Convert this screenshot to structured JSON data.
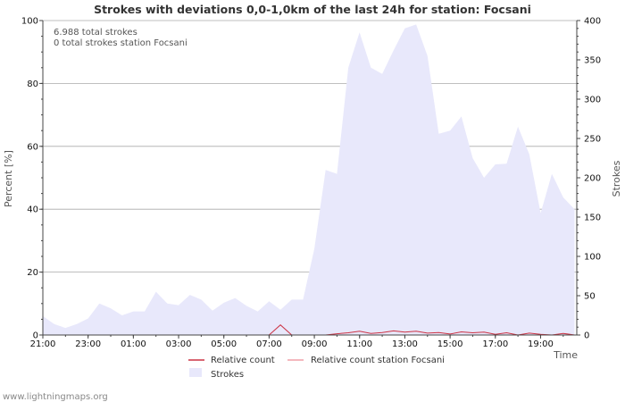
{
  "chart_data": {
    "type": "area",
    "title": "Strokes with deviations 0,0-1,0km of the last 24h for station: Focsani",
    "annotations": [
      "6.988 total strokes",
      "0 total strokes station Focsani"
    ],
    "ylabel_left": "Percent   [%]",
    "ylabel_right": "Strokes",
    "xlabel": "Time",
    "x_ticks": [
      "21:00",
      "23:00",
      "01:00",
      "03:00",
      "05:00",
      "07:00",
      "09:00",
      "11:00",
      "13:00",
      "15:00",
      "17:00",
      "19:00"
    ],
    "x_range_hours": [
      0,
      23.6
    ],
    "y_left_ticks": [
      "0",
      "20",
      "40",
      "60",
      "80",
      "100"
    ],
    "y_left_range": [
      0,
      100
    ],
    "y_right_ticks": [
      "0",
      "50",
      "100",
      "150",
      "200",
      "250",
      "300",
      "350",
      "400"
    ],
    "y_right_range": [
      0,
      400
    ],
    "series": [
      {
        "name": "Strokes",
        "axis": "right",
        "color": "#e8e8fb",
        "style": "area",
        "x_hours": [
          0,
          0.5,
          1,
          1.5,
          2,
          2.5,
          3,
          3.5,
          4,
          4.5,
          5,
          5.5,
          6,
          6.5,
          7,
          7.5,
          8,
          8.5,
          9,
          9.5,
          10,
          10.5,
          11,
          11.5,
          12,
          12.5,
          13,
          13.5,
          14,
          14.5,
          15,
          15.5,
          16,
          16.5,
          17,
          17.5,
          18,
          18.5,
          19,
          19.5,
          20,
          20.5,
          21,
          21.5,
          22,
          22.5,
          23,
          23.5
        ],
        "values": [
          24,
          14,
          9,
          14,
          21,
          40,
          34,
          25,
          30,
          30,
          55,
          40,
          38,
          51,
          45,
          31,
          41,
          47,
          37,
          30,
          43,
          32,
          45,
          45,
          110,
          210,
          205,
          340,
          385,
          340,
          332,
          362,
          390,
          395,
          355,
          256,
          260,
          278,
          225,
          200,
          217,
          218,
          265,
          230,
          155,
          205,
          175,
          160
        ]
      },
      {
        "name": "Relative count",
        "axis": "left",
        "color": "#cc3344",
        "style": "line",
        "x_hours": [
          0,
          1,
          2,
          3,
          4,
          5,
          6,
          7,
          8,
          9,
          10,
          10.5,
          11,
          11.5,
          12,
          12.5,
          13,
          13.5,
          14,
          14.5,
          15,
          15.5,
          16,
          16.5,
          17,
          17.5,
          18,
          18.5,
          19,
          19.5,
          20,
          20.5,
          21,
          21.5,
          22,
          22.5,
          23,
          23.5
        ],
        "values": [
          0,
          0,
          0,
          0,
          0,
          0,
          0,
          0,
          0,
          0,
          0,
          3.2,
          0,
          0,
          0,
          0,
          0.4,
          0.7,
          1.2,
          0.5,
          0.8,
          1.3,
          0.9,
          1.2,
          0.6,
          0.8,
          0.3,
          1.0,
          0.7,
          0.9,
          0.2,
          0.7,
          0,
          0.6,
          0.2,
          0,
          0.5,
          0
        ]
      },
      {
        "name": "Relative count station Focsani",
        "axis": "left",
        "color": "#f0a0a8",
        "style": "line",
        "x_hours": [
          0,
          23.5
        ],
        "values": [
          0,
          0
        ]
      }
    ],
    "legend": [
      "Relative count",
      "Relative count station Focsani",
      "Strokes"
    ],
    "grid": true
  },
  "footer": "www.lightningmaps.org"
}
